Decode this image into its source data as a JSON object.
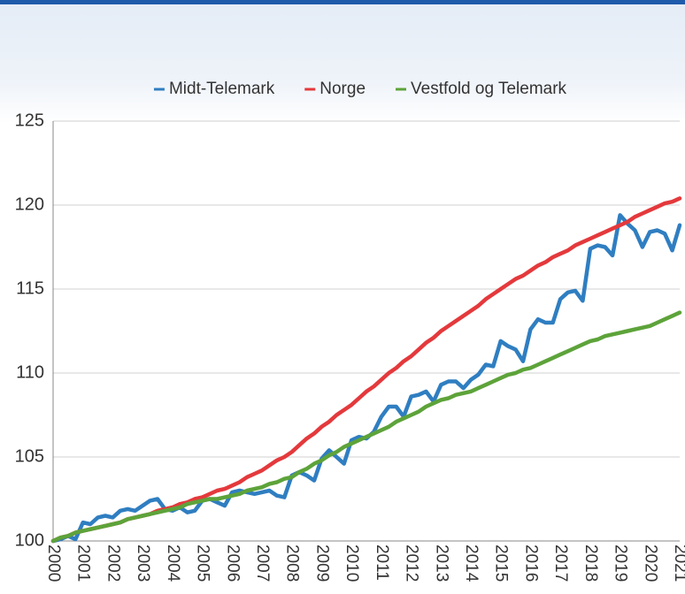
{
  "chart_data": {
    "type": "line",
    "categories": [
      "2000",
      null,
      null,
      null,
      "2001",
      null,
      null,
      null,
      "2002",
      null,
      null,
      null,
      "2003",
      null,
      null,
      null,
      "2004",
      null,
      null,
      null,
      "2005",
      null,
      null,
      null,
      "2006",
      null,
      null,
      null,
      "2007",
      null,
      null,
      null,
      "2008",
      null,
      null,
      null,
      "2009",
      null,
      null,
      null,
      "2010",
      null,
      null,
      null,
      "2011",
      null,
      null,
      null,
      "2012",
      null,
      null,
      null,
      "2013",
      null,
      null,
      null,
      "2014",
      null,
      null,
      null,
      "2015",
      null,
      null,
      null,
      "2016",
      null,
      null,
      null,
      "2017",
      null,
      null,
      null,
      "2018",
      null,
      null,
      null,
      "2019",
      null,
      null,
      null,
      "2020",
      null,
      null,
      null,
      "2021"
    ],
    "series": [
      {
        "name": "Midt-Telemark",
        "color": "#2f7ec1",
        "values": [
          100.0,
          100.1,
          100.3,
          100.1,
          101.1,
          101.0,
          101.4,
          101.5,
          101.4,
          101.8,
          101.9,
          101.8,
          102.1,
          102.4,
          102.5,
          101.9,
          101.8,
          102.0,
          101.7,
          101.8,
          102.4,
          102.5,
          102.3,
          102.1,
          102.9,
          103.0,
          102.9,
          102.8,
          102.9,
          103.0,
          102.7,
          102.6,
          103.9,
          104.1,
          103.9,
          103.6,
          104.9,
          105.4,
          105.0,
          104.6,
          106.0,
          106.2,
          106.1,
          106.5,
          107.4,
          108.0,
          108.0,
          107.4,
          108.6,
          108.7,
          108.9,
          108.3,
          109.3,
          109.5,
          109.5,
          109.1,
          109.6,
          109.9,
          110.5,
          110.4,
          111.9,
          111.6,
          111.4,
          110.7,
          112.6,
          113.2,
          113.0,
          113.0,
          114.4,
          114.8,
          114.9,
          114.3,
          117.4,
          117.6,
          117.5,
          117.0,
          119.4,
          118.9,
          118.5,
          117.5,
          118.4,
          118.5,
          118.3,
          117.3,
          118.8
        ]
      },
      {
        "name": "Norge",
        "color": "#e4393c",
        "values": [
          100.0,
          100.2,
          100.3,
          100.5,
          100.6,
          100.7,
          100.8,
          100.9,
          101.0,
          101.1,
          101.3,
          101.4,
          101.5,
          101.6,
          101.8,
          101.9,
          102.0,
          102.2,
          102.3,
          102.5,
          102.6,
          102.8,
          103.0,
          103.1,
          103.3,
          103.5,
          103.8,
          104.0,
          104.2,
          104.5,
          104.8,
          105.0,
          105.3,
          105.7,
          106.1,
          106.4,
          106.8,
          107.1,
          107.5,
          107.8,
          108.1,
          108.5,
          108.9,
          109.2,
          109.6,
          110.0,
          110.3,
          110.7,
          111.0,
          111.4,
          111.8,
          112.1,
          112.5,
          112.8,
          113.1,
          113.4,
          113.7,
          114.0,
          114.4,
          114.7,
          115.0,
          115.3,
          115.6,
          115.8,
          116.1,
          116.4,
          116.6,
          116.9,
          117.1,
          117.3,
          117.6,
          117.8,
          118.0,
          118.2,
          118.4,
          118.6,
          118.8,
          119.0,
          119.3,
          119.5,
          119.7,
          119.9,
          120.1,
          120.2,
          120.4
        ]
      },
      {
        "name": "Vestfold og Telemark",
        "color": "#5da33a",
        "values": [
          100.0,
          100.2,
          100.3,
          100.5,
          100.6,
          100.7,
          100.8,
          100.9,
          101.0,
          101.1,
          101.3,
          101.4,
          101.5,
          101.6,
          101.7,
          101.8,
          101.9,
          102.0,
          102.2,
          102.3,
          102.4,
          102.5,
          102.5,
          102.6,
          102.7,
          102.8,
          103.0,
          103.1,
          103.2,
          103.4,
          103.5,
          103.7,
          103.8,
          104.1,
          104.3,
          104.6,
          104.8,
          105.1,
          105.3,
          105.6,
          105.8,
          106.0,
          106.2,
          106.4,
          106.6,
          106.8,
          107.1,
          107.3,
          107.5,
          107.7,
          108.0,
          108.2,
          108.4,
          108.5,
          108.7,
          108.8,
          108.9,
          109.1,
          109.3,
          109.5,
          109.7,
          109.9,
          110.0,
          110.2,
          110.3,
          110.5,
          110.7,
          110.9,
          111.1,
          111.3,
          111.5,
          111.7,
          111.9,
          112.0,
          112.2,
          112.3,
          112.4,
          112.5,
          112.6,
          112.7,
          112.8,
          113.0,
          113.2,
          113.4,
          113.6
        ]
      }
    ],
    "ylim": [
      100,
      125
    ],
    "yticks": [
      100,
      105,
      110,
      115,
      120,
      125
    ],
    "grid": true,
    "legend": "top"
  }
}
